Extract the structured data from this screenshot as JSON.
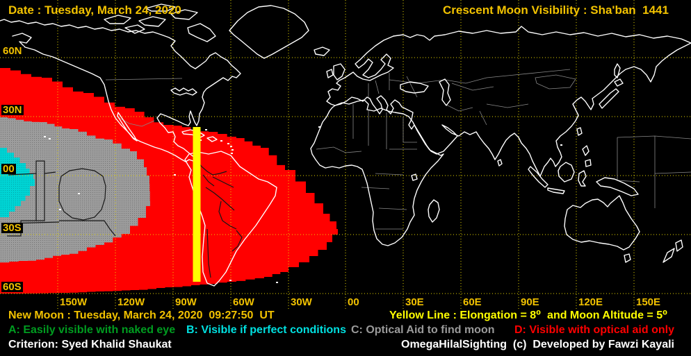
{
  "header": {
    "date_label": "Date : Tuesday, March 24, 2020",
    "title": "Crescent Moon Visibility : Sha'ban  1441"
  },
  "map": {
    "lat_labels": [
      "60N",
      "30N",
      "00",
      "30S",
      "60S"
    ],
    "lon_labels": [
      "150W",
      "120W",
      "90W",
      "60W",
      "30W",
      "00",
      "30E",
      "60E",
      "90E",
      "120E",
      "150E"
    ],
    "zone_colors": {
      "A": "#009018",
      "B": "#00D4D4",
      "B_dot": "#00A8AC",
      "C": "#9C9C9C",
      "C_dot": "#747474",
      "D": "#FF0000"
    },
    "yellow_line_color": "#FFFF00",
    "grid_color": "#E8D800",
    "coast_color": "#FFFFFF"
  },
  "footer": {
    "new_moon": "New Moon : Tuesday, March 24, 2020  09:27:50  UT",
    "yellow_line_note": "Yellow Line : Elongation = 8⁰  and Moon Altitude = 5⁰",
    "legend": [
      {
        "text": "A: Easily visible with naked eye",
        "color": "#009C20"
      },
      {
        "text": "B: Visible if perfect conditions",
        "color": "#00E0E0"
      },
      {
        "text": "C: Optical Aid to find moon",
        "color": "#9A9A9A"
      },
      {
        "text": "D: Visible with optical aid only",
        "color": "#FF0000"
      }
    ],
    "criterion": "Criterion: Syed Khalid Shaukat",
    "credit": "OmegaHilalSighting  (c)  Developed by Fawzi Kayali"
  }
}
